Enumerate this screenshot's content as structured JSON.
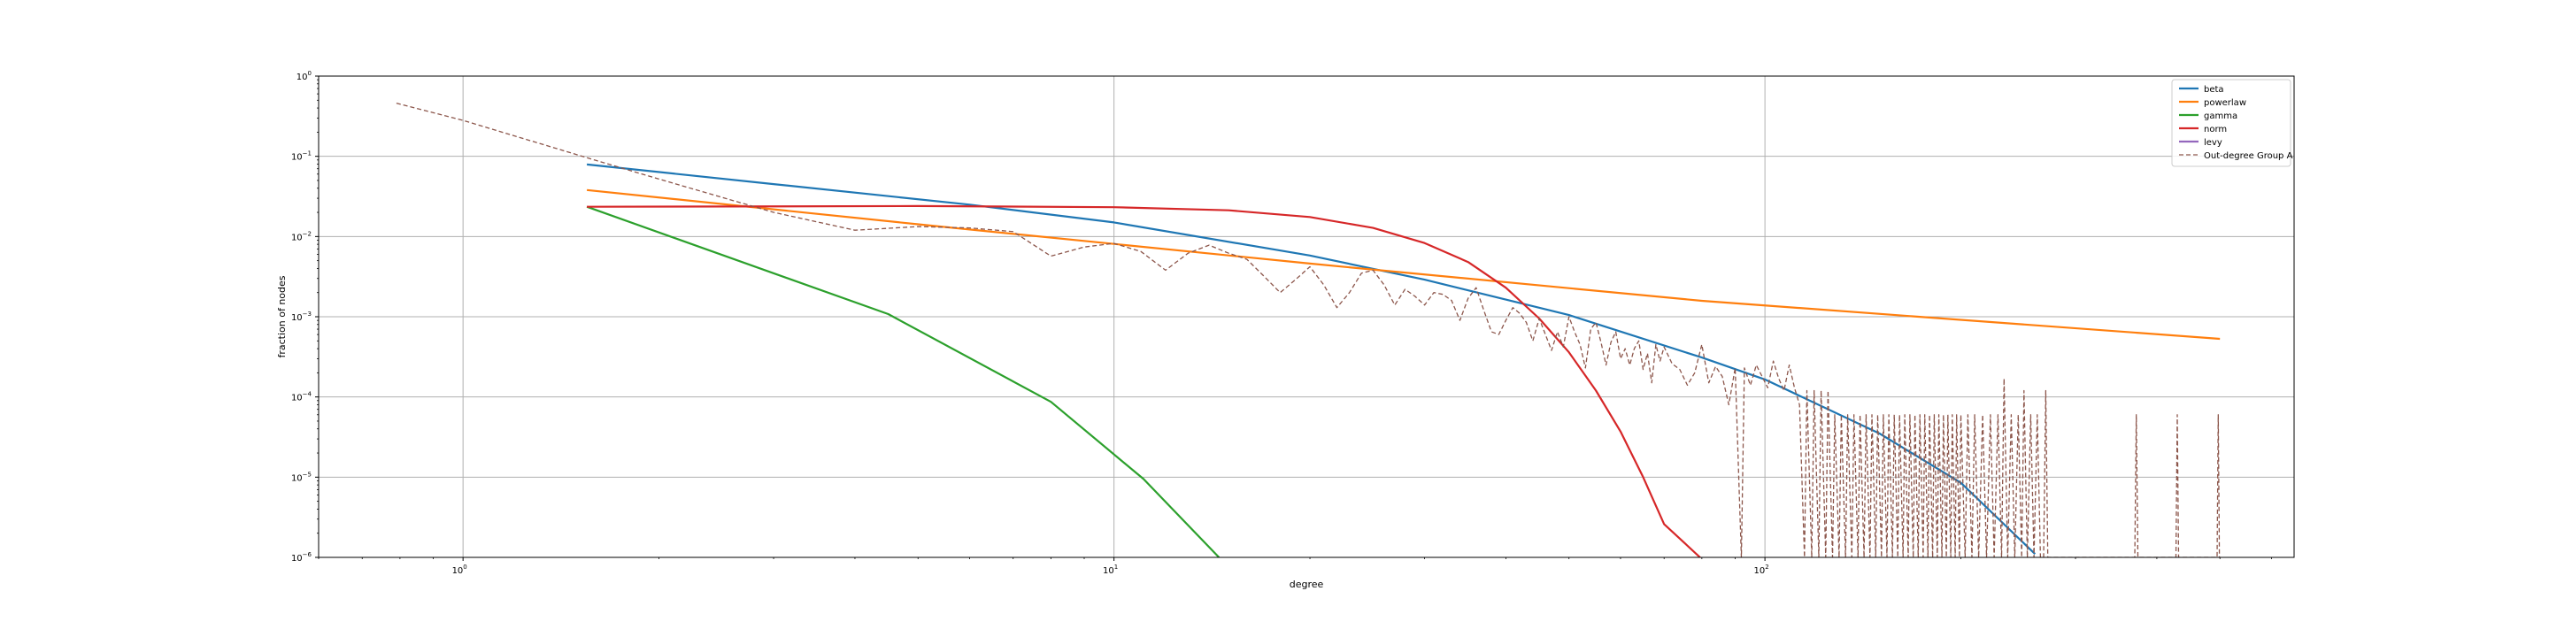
{
  "chart_data": {
    "type": "line",
    "title": "",
    "xlabel": "degree",
    "ylabel": "fraction of nodes",
    "xscale": "log",
    "yscale": "log",
    "xlim": [
      0.6,
      650
    ],
    "ylim": [
      1e-06,
      1
    ],
    "grid": true,
    "legend_position": "top-right",
    "x_ticks": [
      {
        "value": 1,
        "base": "10",
        "exp": "0"
      },
      {
        "value": 10,
        "base": "10",
        "exp": "1"
      },
      {
        "value": 100,
        "base": "10",
        "exp": "2"
      }
    ],
    "y_ticks": [
      {
        "value": 1,
        "base": "10",
        "exp": "0"
      },
      {
        "value": 0.1,
        "base": "10",
        "exp": "−1"
      },
      {
        "value": 0.01,
        "base": "10",
        "exp": "−2"
      },
      {
        "value": 0.001,
        "base": "10",
        "exp": "−3"
      },
      {
        "value": 0.0001,
        "base": "10",
        "exp": "−4"
      },
      {
        "value": 1e-05,
        "base": "10",
        "exp": "−5"
      },
      {
        "value": 1e-06,
        "base": "10",
        "exp": "−6"
      }
    ],
    "series": [
      {
        "name": "beta",
        "color": "#1f77b4",
        "style": "solid",
        "points": [
          [
            1.55,
            0.079
          ],
          [
            3,
            0.045
          ],
          [
            6,
            0.025
          ],
          [
            10,
            0.015
          ],
          [
            20,
            0.0058
          ],
          [
            30,
            0.0029
          ],
          [
            50,
            0.00105
          ],
          [
            80,
            0.00031
          ],
          [
            100,
            0.000165
          ],
          [
            150,
            3.5e-05
          ],
          [
            200,
            8.5e-06
          ],
          [
            260,
            1.1e-06
          ]
        ]
      },
      {
        "name": "powerlaw",
        "color": "#ff7f0e",
        "style": "solid",
        "points": [
          [
            1.55,
            0.038
          ],
          [
            5,
            0.0142
          ],
          [
            20,
            0.0046
          ],
          [
            80,
            0.00158
          ],
          [
            500,
            0.00053
          ]
        ]
      },
      {
        "name": "gamma",
        "color": "#2ca02c",
        "style": "solid",
        "points": [
          [
            1.55,
            0.0235
          ],
          [
            4.5,
            0.00108
          ],
          [
            8,
            8.7e-05
          ],
          [
            11.1,
            9.5e-06
          ],
          [
            14.5,
            1e-06
          ]
        ]
      },
      {
        "name": "norm",
        "color": "#d62728",
        "style": "solid",
        "points": [
          [
            1.55,
            0.0235
          ],
          [
            5,
            0.024
          ],
          [
            10,
            0.0232
          ],
          [
            15,
            0.0212
          ],
          [
            20,
            0.0175
          ],
          [
            25,
            0.0128
          ],
          [
            30,
            0.0083
          ],
          [
            35,
            0.0048
          ],
          [
            40,
            0.0023
          ],
          [
            45,
            0.00095
          ],
          [
            50,
            0.00036
          ],
          [
            55,
            0.00012
          ],
          [
            60,
            3.7e-05
          ],
          [
            65,
            1e-05
          ],
          [
            70,
            2.6e-06
          ],
          [
            79.5,
            1e-06
          ]
        ]
      },
      {
        "name": "levy",
        "color": "#9467bd",
        "style": "solid",
        "points": []
      },
      {
        "name": "Out-degree Group A",
        "color": "#8c564b",
        "style": "dashed",
        "points": [
          [
            0.79,
            0.46
          ],
          [
            1,
            0.28
          ],
          [
            1.6,
            0.089
          ],
          [
            2,
            0.052
          ],
          [
            3,
            0.02
          ],
          [
            4,
            0.012
          ],
          [
            5,
            0.0133
          ],
          [
            6,
            0.0128
          ],
          [
            7,
            0.0115
          ],
          [
            8,
            0.0057
          ],
          [
            9,
            0.0074
          ],
          [
            10,
            0.0082
          ],
          [
            11,
            0.0065
          ],
          [
            12,
            0.0038
          ],
          [
            13,
            0.0062
          ],
          [
            14,
            0.0078
          ],
          [
            15,
            0.0062
          ],
          [
            16,
            0.0052
          ],
          [
            17,
            0.0032
          ],
          [
            18,
            0.002
          ],
          [
            19,
            0.0029
          ],
          [
            20,
            0.0042
          ],
          [
            21,
            0.0025
          ],
          [
            22,
            0.0013
          ],
          [
            23,
            0.002
          ],
          [
            24,
            0.0035
          ],
          [
            25,
            0.0038
          ],
          [
            26,
            0.0025
          ],
          [
            27,
            0.0014
          ],
          [
            28,
            0.0022
          ],
          [
            29,
            0.0018
          ],
          [
            30,
            0.0014
          ],
          [
            31,
            0.002
          ],
          [
            32,
            0.0019
          ],
          [
            33,
            0.0016
          ],
          [
            34,
            0.0009
          ],
          [
            35,
            0.0017
          ],
          [
            36,
            0.0023
          ],
          [
            37,
            0.0012
          ],
          [
            38,
            0.00065
          ],
          [
            39,
            0.0006
          ],
          [
            40,
            0.0009
          ],
          [
            41,
            0.0013
          ],
          [
            42,
            0.0011
          ],
          [
            43,
            0.00085
          ],
          [
            44,
            0.0005
          ],
          [
            45,
            0.00095
          ],
          [
            46,
            0.0006
          ],
          [
            47,
            0.00038
          ],
          [
            48,
            0.00065
          ],
          [
            49,
            0.00042
          ],
          [
            50,
            0.001
          ],
          [
            51,
            0.00065
          ],
          [
            52,
            0.00045
          ],
          [
            53,
            0.00023
          ],
          [
            54,
            0.0007
          ],
          [
            55,
            0.00085
          ],
          [
            56,
            0.00048
          ],
          [
            57,
            0.00025
          ],
          [
            58,
            0.00048
          ],
          [
            59,
            0.00065
          ],
          [
            60,
            0.0003
          ],
          [
            61,
            0.0004
          ],
          [
            62,
            0.00025
          ],
          [
            63,
            0.0004
          ],
          [
            64,
            0.0005
          ],
          [
            65,
            0.00022
          ],
          [
            66,
            0.00035
          ],
          [
            67,
            0.00015
          ],
          [
            68,
            0.00045
          ],
          [
            69,
            0.00028
          ],
          [
            70,
            0.00042
          ],
          [
            72,
            0.00026
          ],
          [
            74,
            0.00022
          ],
          [
            76,
            0.00014
          ],
          [
            78,
            0.0002
          ],
          [
            80,
            0.00045
          ],
          [
            82,
            0.00015
          ],
          [
            84,
            0.00024
          ],
          [
            86,
            0.00018
          ],
          [
            88,
            8e-05
          ],
          [
            90,
            0.00023
          ],
          [
            92,
            1e-06
          ],
          [
            93,
            0.00023
          ],
          [
            95,
            0.00014
          ],
          [
            97,
            0.00025
          ],
          [
            99,
            0.00018
          ],
          [
            101,
            0.00013
          ],
          [
            103,
            0.00028
          ],
          [
            105,
            0.00017
          ],
          [
            107,
            0.00012
          ],
          [
            109,
            0.00025
          ],
          [
            111,
            0.00013
          ],
          [
            113,
            8e-05
          ],
          [
            115,
            1e-06
          ],
          [
            116,
            0.00012
          ],
          [
            118,
            1e-06
          ],
          [
            119,
            0.00012
          ],
          [
            121,
            1e-06
          ],
          [
            122,
            0.00012
          ],
          [
            124,
            1e-06
          ],
          [
            125,
            0.00012
          ],
          [
            127,
            1e-06
          ],
          [
            128,
            6e-05
          ],
          [
            130,
            1e-06
          ],
          [
            131,
            6e-05
          ],
          [
            133,
            1e-06
          ],
          [
            134,
            6e-05
          ],
          [
            136,
            1e-06
          ],
          [
            137,
            6e-05
          ],
          [
            139,
            1e-06
          ],
          [
            140,
            6e-05
          ],
          [
            142,
            1e-06
          ],
          [
            143,
            6e-05
          ],
          [
            145,
            1e-06
          ],
          [
            146,
            6e-05
          ],
          [
            148,
            1e-06
          ],
          [
            149,
            6e-05
          ],
          [
            151,
            1e-06
          ],
          [
            152,
            6e-05
          ],
          [
            154,
            1e-06
          ],
          [
            155,
            6e-05
          ],
          [
            157,
            1e-06
          ],
          [
            158,
            6e-05
          ],
          [
            160,
            1e-06
          ],
          [
            161,
            6e-05
          ],
          [
            163,
            1e-06
          ],
          [
            164,
            6e-05
          ],
          [
            166,
            1e-06
          ],
          [
            167,
            6e-05
          ],
          [
            169,
            1e-06
          ],
          [
            170,
            6e-05
          ],
          [
            172,
            1e-06
          ],
          [
            173,
            6e-05
          ],
          [
            175,
            1e-06
          ],
          [
            176,
            6e-05
          ],
          [
            178,
            1e-06
          ],
          [
            179,
            6e-05
          ],
          [
            181,
            1e-06
          ],
          [
            182,
            6e-05
          ],
          [
            184,
            1e-06
          ],
          [
            185,
            6e-05
          ],
          [
            187,
            1e-06
          ],
          [
            188,
            6e-05
          ],
          [
            190,
            1e-06
          ],
          [
            191,
            6e-05
          ],
          [
            193,
            1e-06
          ],
          [
            194,
            6e-05
          ],
          [
            196,
            1e-06
          ],
          [
            197,
            6e-05
          ],
          [
            199,
            1e-06
          ],
          [
            200,
            6e-05
          ],
          [
            203,
            1e-06
          ],
          [
            205,
            6e-05
          ],
          [
            208,
            1e-06
          ],
          [
            210,
            6e-05
          ],
          [
            213,
            1e-06
          ],
          [
            216,
            6e-05
          ],
          [
            219,
            1e-06
          ],
          [
            222,
            6e-05
          ],
          [
            225,
            1e-06
          ],
          [
            228,
            6e-05
          ],
          [
            231,
            1e-06
          ],
          [
            233,
            0.00017
          ],
          [
            236,
            1e-06
          ],
          [
            239,
            6e-05
          ],
          [
            242,
            1e-06
          ],
          [
            245,
            6e-05
          ],
          [
            248,
            1e-06
          ],
          [
            250,
            0.00012
          ],
          [
            253,
            1e-06
          ],
          [
            256,
            6e-05
          ],
          [
            259,
            1e-06
          ],
          [
            262,
            6e-05
          ],
          [
            265,
            1e-06
          ],
          [
            268,
            1e-06
          ],
          [
            270,
            0.00012
          ],
          [
            272,
            1e-06
          ],
          [
            370,
            1e-06
          ],
          [
            372,
            6e-05
          ],
          [
            374,
            1e-06
          ],
          [
            428,
            1e-06
          ],
          [
            430,
            6e-05
          ],
          [
            432,
            1e-06
          ],
          [
            495,
            1e-06
          ],
          [
            497,
            6e-05
          ],
          [
            499,
            1e-06
          ]
        ]
      }
    ]
  }
}
